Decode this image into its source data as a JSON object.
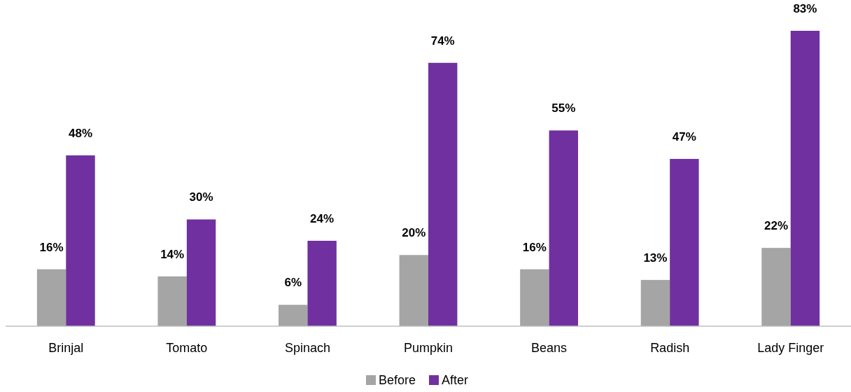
{
  "chart_data": {
    "type": "bar",
    "categories": [
      "Brinjal",
      "Tomato",
      "Spinach",
      "Pumpkin",
      "Beans",
      "Radish",
      "Lady Finger"
    ],
    "series": [
      {
        "name": "Before",
        "color": "#a5a5a5",
        "values": [
          16,
          14,
          6,
          20,
          16,
          13,
          22
        ],
        "value_labels": [
          "16%",
          "14%",
          "6%",
          "20%",
          "16%",
          "13%",
          "22%"
        ]
      },
      {
        "name": "After",
        "color": "#7030a0",
        "values": [
          48,
          30,
          24,
          74,
          55,
          47,
          83
        ],
        "value_labels": [
          "48%",
          "30%",
          "24%",
          "74%",
          "55%",
          "47%",
          "83%"
        ]
      }
    ],
    "legend": "bottom"
  }
}
